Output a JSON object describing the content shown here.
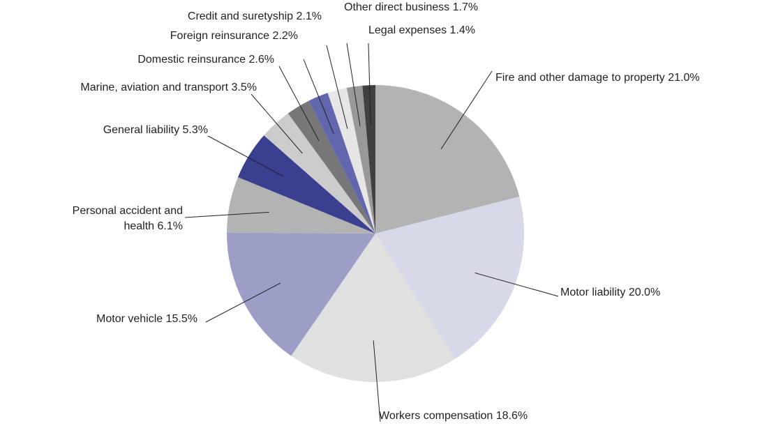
{
  "chart_data": {
    "type": "pie",
    "categories": [
      "Fire and other damage to property",
      "Motor liability",
      "Workers compensation",
      "Motor vehicle",
      "Personal accident and health",
      "General liability",
      "Marine, aviation and transport",
      "Domestic reinsurance",
      "Foreign reinsurance",
      "Credit and suretyship",
      "Other direct business",
      "Legal expenses"
    ],
    "values": [
      21.0,
      20.0,
      18.6,
      15.5,
      6.1,
      5.3,
      3.5,
      2.6,
      2.2,
      2.1,
      1.7,
      1.4
    ],
    "value_labels": [
      "21.0%",
      "20.0%",
      "18.6%",
      "15.5%",
      "6.1%",
      "5.3%",
      "3.5%",
      "2.6%",
      "2.2%",
      "2.1%",
      "1.7%",
      "1.4%"
    ],
    "colors": [
      "#b3b3b3",
      "#d7d8e8",
      "#e0e0e0",
      "#9c9ec6",
      "#b3b3b3",
      "#3b3f8f",
      "#cccccc",
      "#777777",
      "#6266ad",
      "#e6e6e6",
      "#999999",
      "#404040"
    ]
  }
}
